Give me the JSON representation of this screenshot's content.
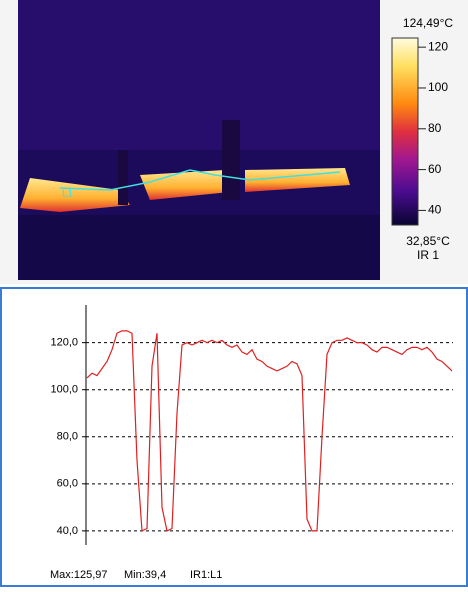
{
  "thermal_image": {
    "line_label": "L1",
    "scale_label": "IR 1",
    "colorbar": {
      "lim": [
        {
          "value": 32.85,
          "label": "32,85°C"
        },
        {
          "value": 124.49,
          "label": "124,49°C"
        }
      ],
      "ticks": [
        40,
        60,
        80,
        100,
        120
      ]
    }
  },
  "chart_data": {
    "type": "line",
    "values": [
      105,
      107,
      106,
      109,
      112,
      117,
      124,
      125,
      125,
      124,
      70,
      40,
      41,
      110,
      124,
      50,
      40,
      41,
      90,
      119,
      120,
      119,
      120,
      121,
      120,
      121,
      120,
      121,
      119,
      118,
      119,
      116,
      115,
      117,
      113,
      112,
      110,
      109,
      108,
      109,
      110,
      112,
      111,
      106,
      45,
      40,
      40,
      80,
      115,
      120,
      121,
      121,
      122,
      121,
      120,
      120,
      119,
      117,
      116,
      118,
      118,
      117,
      116,
      115,
      117,
      118,
      118,
      117,
      118,
      116,
      113,
      112,
      110,
      108
    ],
    "color": "#e02020",
    "ylim": [
      34,
      136
    ],
    "yticks": [
      {
        "value": 40,
        "label": "40,0"
      },
      {
        "value": 60,
        "label": "60,0"
      },
      {
        "value": 80,
        "label": "80,0"
      },
      {
        "value": 100,
        "label": "100,0"
      },
      {
        "value": 120,
        "label": "120,0"
      }
    ],
    "grid": true
  },
  "footer": {
    "max": "Max:125,97",
    "min": "Min:39,4",
    "source": "IR1:L1"
  }
}
